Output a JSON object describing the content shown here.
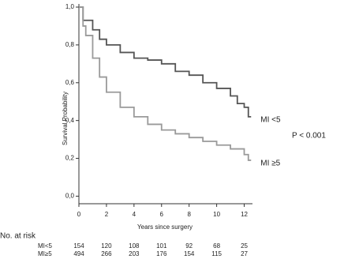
{
  "chart_data": {
    "type": "step",
    "y_label": "Survival Probability",
    "x_label": "Years since surgery",
    "annotation": "P < 0.001",
    "xlim": [
      0,
      12.6
    ],
    "ylim": [
      -0.04,
      1.0
    ],
    "xticks": [
      0,
      2,
      4,
      6,
      8,
      10,
      12
    ],
    "yticks": [
      {
        "value": 0,
        "label": "0,0"
      },
      {
        "value": 0.2,
        "label": "0,2"
      },
      {
        "value": 0.4,
        "label": "0,4"
      },
      {
        "value": 0.6,
        "label": "0,6"
      },
      {
        "value": 0.8,
        "label": "0,8"
      },
      {
        "value": 1,
        "label": "1,0"
      }
    ],
    "series": [
      {
        "name": "MI <5",
        "color": "#555555",
        "x": [
          0,
          0.3,
          1,
          1.5,
          2,
          3,
          4,
          5,
          6,
          7,
          8,
          9,
          10,
          11,
          11.5,
          12,
          12.3,
          12.5
        ],
        "values": [
          1.0,
          0.93,
          0.88,
          0.83,
          0.8,
          0.76,
          0.73,
          0.72,
          0.7,
          0.66,
          0.64,
          0.6,
          0.57,
          0.53,
          0.49,
          0.47,
          0.42,
          0.42
        ]
      },
      {
        "name": "MI ≥5",
        "color": "#9a9a9a",
        "x": [
          0,
          0.3,
          0.5,
          1,
          1.5,
          2,
          3,
          4,
          5,
          6,
          7,
          8,
          9,
          10,
          11,
          12,
          12.3,
          12.5
        ],
        "values": [
          1.0,
          0.9,
          0.85,
          0.73,
          0.63,
          0.55,
          0.47,
          0.42,
          0.38,
          0.35,
          0.33,
          0.31,
          0.29,
          0.27,
          0.25,
          0.22,
          0.19,
          0.19
        ]
      }
    ],
    "risk_table": {
      "title": "No. at risk",
      "rows": [
        {
          "label": "MI<5",
          "values": [
            154,
            120,
            108,
            101,
            92,
            68,
            25
          ]
        },
        {
          "label": "MI≥5",
          "values": [
            494,
            266,
            203,
            176,
            154,
            115,
            27
          ]
        }
      ]
    }
  }
}
